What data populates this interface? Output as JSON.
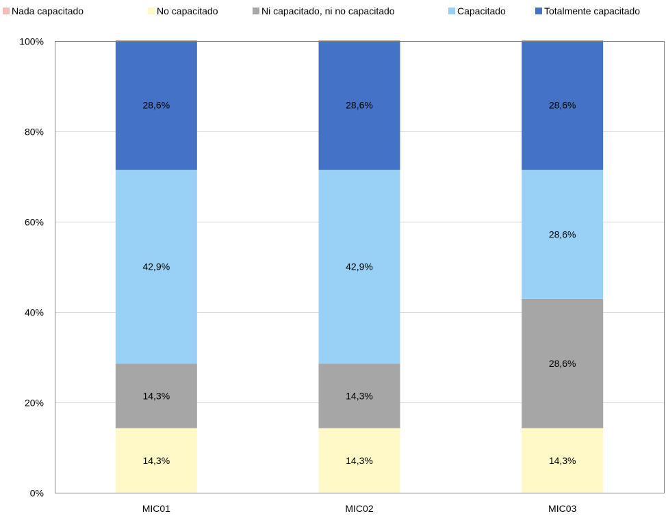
{
  "chart_data": {
    "type": "bar",
    "stacked": true,
    "categories": [
      "MIC01",
      "MIC02",
      "MIC03"
    ],
    "series": [
      {
        "name": "Nada capacitado",
        "color": "#F4B9B9",
        "values": [
          0,
          0,
          0
        ],
        "labels": [
          "",
          "",
          ""
        ]
      },
      {
        "name": "No capacitado",
        "color": "#FFF9C8",
        "values": [
          14.3,
          14.3,
          14.3
        ],
        "labels": [
          "14,3%",
          "14,3%",
          "14,3%"
        ]
      },
      {
        "name": "Ni capacitado, ni no capacitado",
        "color": "#A6A6A6",
        "values": [
          14.3,
          14.3,
          28.6
        ],
        "labels": [
          "14,3%",
          "14,3%",
          "28,6%"
        ]
      },
      {
        "name": "Capacitado",
        "color": "#99D0F5",
        "values": [
          42.9,
          42.9,
          28.6
        ],
        "labels": [
          "42,9%",
          "42,9%",
          "28,6%"
        ]
      },
      {
        "name": "Totalmente capacitado",
        "color": "#4472C4",
        "values": [
          28.6,
          28.6,
          28.6
        ],
        "labels": [
          "28,6%",
          "28,6%",
          "28,6%"
        ]
      }
    ],
    "ylim": [
      0,
      100
    ],
    "yticks": [
      "0%",
      "20%",
      "40%",
      "60%",
      "80%",
      "100%"
    ],
    "ytick_values": [
      0,
      20,
      40,
      60,
      80,
      100
    ],
    "legend_position": "top",
    "grid": true,
    "title": "",
    "xlabel": "",
    "ylabel": ""
  }
}
